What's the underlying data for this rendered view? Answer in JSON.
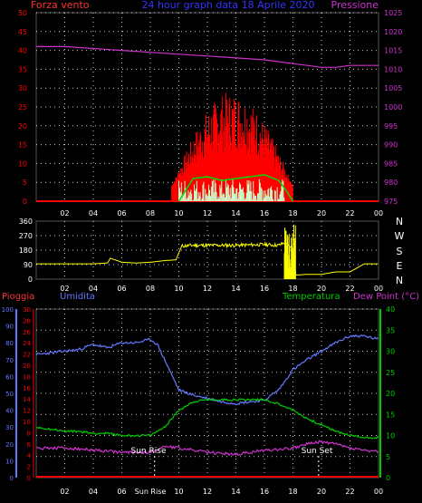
{
  "header": {
    "left_label": "Forza vento",
    "title": "24 hour graph data 18 Aprile 2020",
    "right_label": "Pressione"
  },
  "direction_labels": [
    "N",
    "W",
    "S",
    "E",
    "N"
  ],
  "bottom_labels": {
    "rain": "Pioggia",
    "humidity": "Umidita",
    "temperature": "Temperatura",
    "dew": "Dew Point (°C)"
  },
  "annotations": {
    "sunrise": "Sun Rise",
    "sunset": "Sun Set"
  },
  "colors": {
    "wind": "#ff0000",
    "gust_avg": "#00dd00",
    "wind_low": "#ccffcc",
    "pressure": "#cc33cc",
    "direction": "#ffff00",
    "humidity": "#6677ff",
    "temperature": "#00cc00",
    "dew": "#cc33cc",
    "rain": "#ff0000",
    "grid": "#ffffff"
  },
  "chart_data": [
    {
      "type": "line",
      "name": "wind-pressure",
      "x_ticks": [
        "02",
        "04",
        "06",
        "08",
        "10",
        "12",
        "14",
        "16",
        "18",
        "20",
        "22",
        "00"
      ],
      "left_axis": {
        "label": "Forza vento",
        "ylim": [
          0,
          50
        ],
        "ticks": [
          0,
          5,
          10,
          15,
          20,
          25,
          30,
          35,
          40,
          45,
          50
        ]
      },
      "right_axis": {
        "label": "Pressione",
        "ylim": [
          975,
          1025
        ],
        "ticks": [
          975,
          980,
          985,
          990,
          995,
          1000,
          1005,
          1010,
          1015,
          1020,
          1025
        ]
      },
      "pressure": {
        "x": [
          0,
          2,
          4,
          6,
          8,
          10,
          12,
          14,
          16,
          17,
          18,
          19,
          20,
          21,
          22,
          23,
          24
        ],
        "y": [
          1016,
          1016,
          1015.5,
          1015,
          1014.5,
          1014,
          1013.5,
          1013,
          1012.5,
          1012,
          1011.5,
          1011,
          1010.5,
          1010.5,
          1011,
          1011,
          1011
        ]
      },
      "gust_avg": {
        "x": [
          10,
          10.5,
          11,
          12,
          13,
          14,
          15,
          16,
          17,
          17.5,
          18
        ],
        "y": [
          0,
          3,
          6,
          6.5,
          5.5,
          6,
          6.5,
          7,
          5.5,
          3,
          0
        ]
      },
      "wind_active_hours": [
        9.5,
        18
      ]
    },
    {
      "type": "line",
      "name": "wind-direction",
      "x_ticks": [
        "02",
        "04",
        "06",
        "08",
        "10",
        "12",
        "14",
        "16",
        "18",
        "20",
        "22",
        "00"
      ],
      "ylim": [
        0,
        360
      ],
      "y_ticks": [
        0,
        90,
        180,
        270,
        360
      ],
      "direction": {
        "x": [
          0,
          2,
          4,
          5,
          5.2,
          6,
          7,
          8,
          9,
          9.8,
          10.2,
          11,
          12,
          14,
          16,
          17,
          17.5,
          18,
          18.2,
          19,
          20,
          21,
          22,
          23,
          24
        ],
        "y": [
          95,
          95,
          95,
          100,
          130,
          105,
          100,
          105,
          115,
          120,
          205,
          210,
          210,
          210,
          215,
          210,
          230,
          180,
          25,
          30,
          30,
          45,
          45,
          95,
          95
        ]
      }
    },
    {
      "type": "line",
      "name": "humidity-temperature",
      "x_ticks": [
        "02",
        "04",
        "06",
        "Sun Rise",
        "10",
        "12",
        "14",
        "16",
        "18",
        "20",
        "22",
        "00"
      ],
      "humidity_axis": {
        "label": "Umidita",
        "ylim": [
          0,
          100
        ],
        "ticks": [
          0,
          10,
          20,
          30,
          40,
          50,
          60,
          70,
          80,
          90,
          100
        ]
      },
      "rain_axis": {
        "label": "Pioggia",
        "ylim": [
          0,
          30
        ],
        "ticks": [
          0,
          2,
          4,
          6,
          8,
          10,
          12,
          14,
          16,
          18,
          20,
          22,
          24,
          26,
          28,
          30
        ]
      },
      "temperature_axis": {
        "label": "Temperatura",
        "ylim": [
          0,
          40
        ],
        "ticks": [
          0,
          5,
          10,
          15,
          20,
          25,
          30,
          35,
          40
        ]
      },
      "humidity": {
        "x": [
          0,
          1,
          2,
          3,
          4,
          5,
          6,
          7,
          8,
          8.5,
          9,
          10,
          11,
          12,
          13,
          14,
          15,
          16,
          17,
          18,
          19,
          20,
          21,
          22,
          23,
          24
        ],
        "y": [
          73,
          74,
          75,
          76,
          79,
          77,
          80,
          80,
          82,
          79,
          70,
          52,
          49,
          47,
          45,
          44,
          45,
          46,
          52,
          64,
          70,
          75,
          80,
          84,
          84,
          82
        ]
      },
      "temperature": {
        "x": [
          0,
          1,
          2,
          3,
          4,
          5,
          6,
          7,
          8,
          9,
          10,
          11,
          12,
          13,
          14,
          15,
          16,
          17,
          18,
          19,
          20,
          21,
          22,
          23,
          24
        ],
        "y": [
          12,
          11.5,
          11,
          11,
          10.5,
          10.5,
          10,
          10,
          10,
          12,
          16,
          18,
          18.5,
          18.5,
          18.5,
          18.5,
          18.5,
          17.5,
          16,
          14,
          12.5,
          11,
          10,
          9.5,
          9.5
        ]
      },
      "dew_point": {
        "x": [
          0,
          2,
          4,
          6,
          8,
          9,
          10,
          11,
          12,
          14,
          16,
          18,
          19,
          20,
          21,
          22,
          24
        ],
        "y": [
          7,
          7,
          6.5,
          6,
          6,
          7.5,
          7,
          6.5,
          6,
          5.5,
          6.5,
          7,
          8,
          8.5,
          8,
          7,
          6
        ]
      },
      "rain": {
        "x": [
          0,
          24
        ],
        "y": [
          0,
          0
        ]
      },
      "sunrise_hour": 8.3,
      "sunset_hour": 19.8
    }
  ]
}
